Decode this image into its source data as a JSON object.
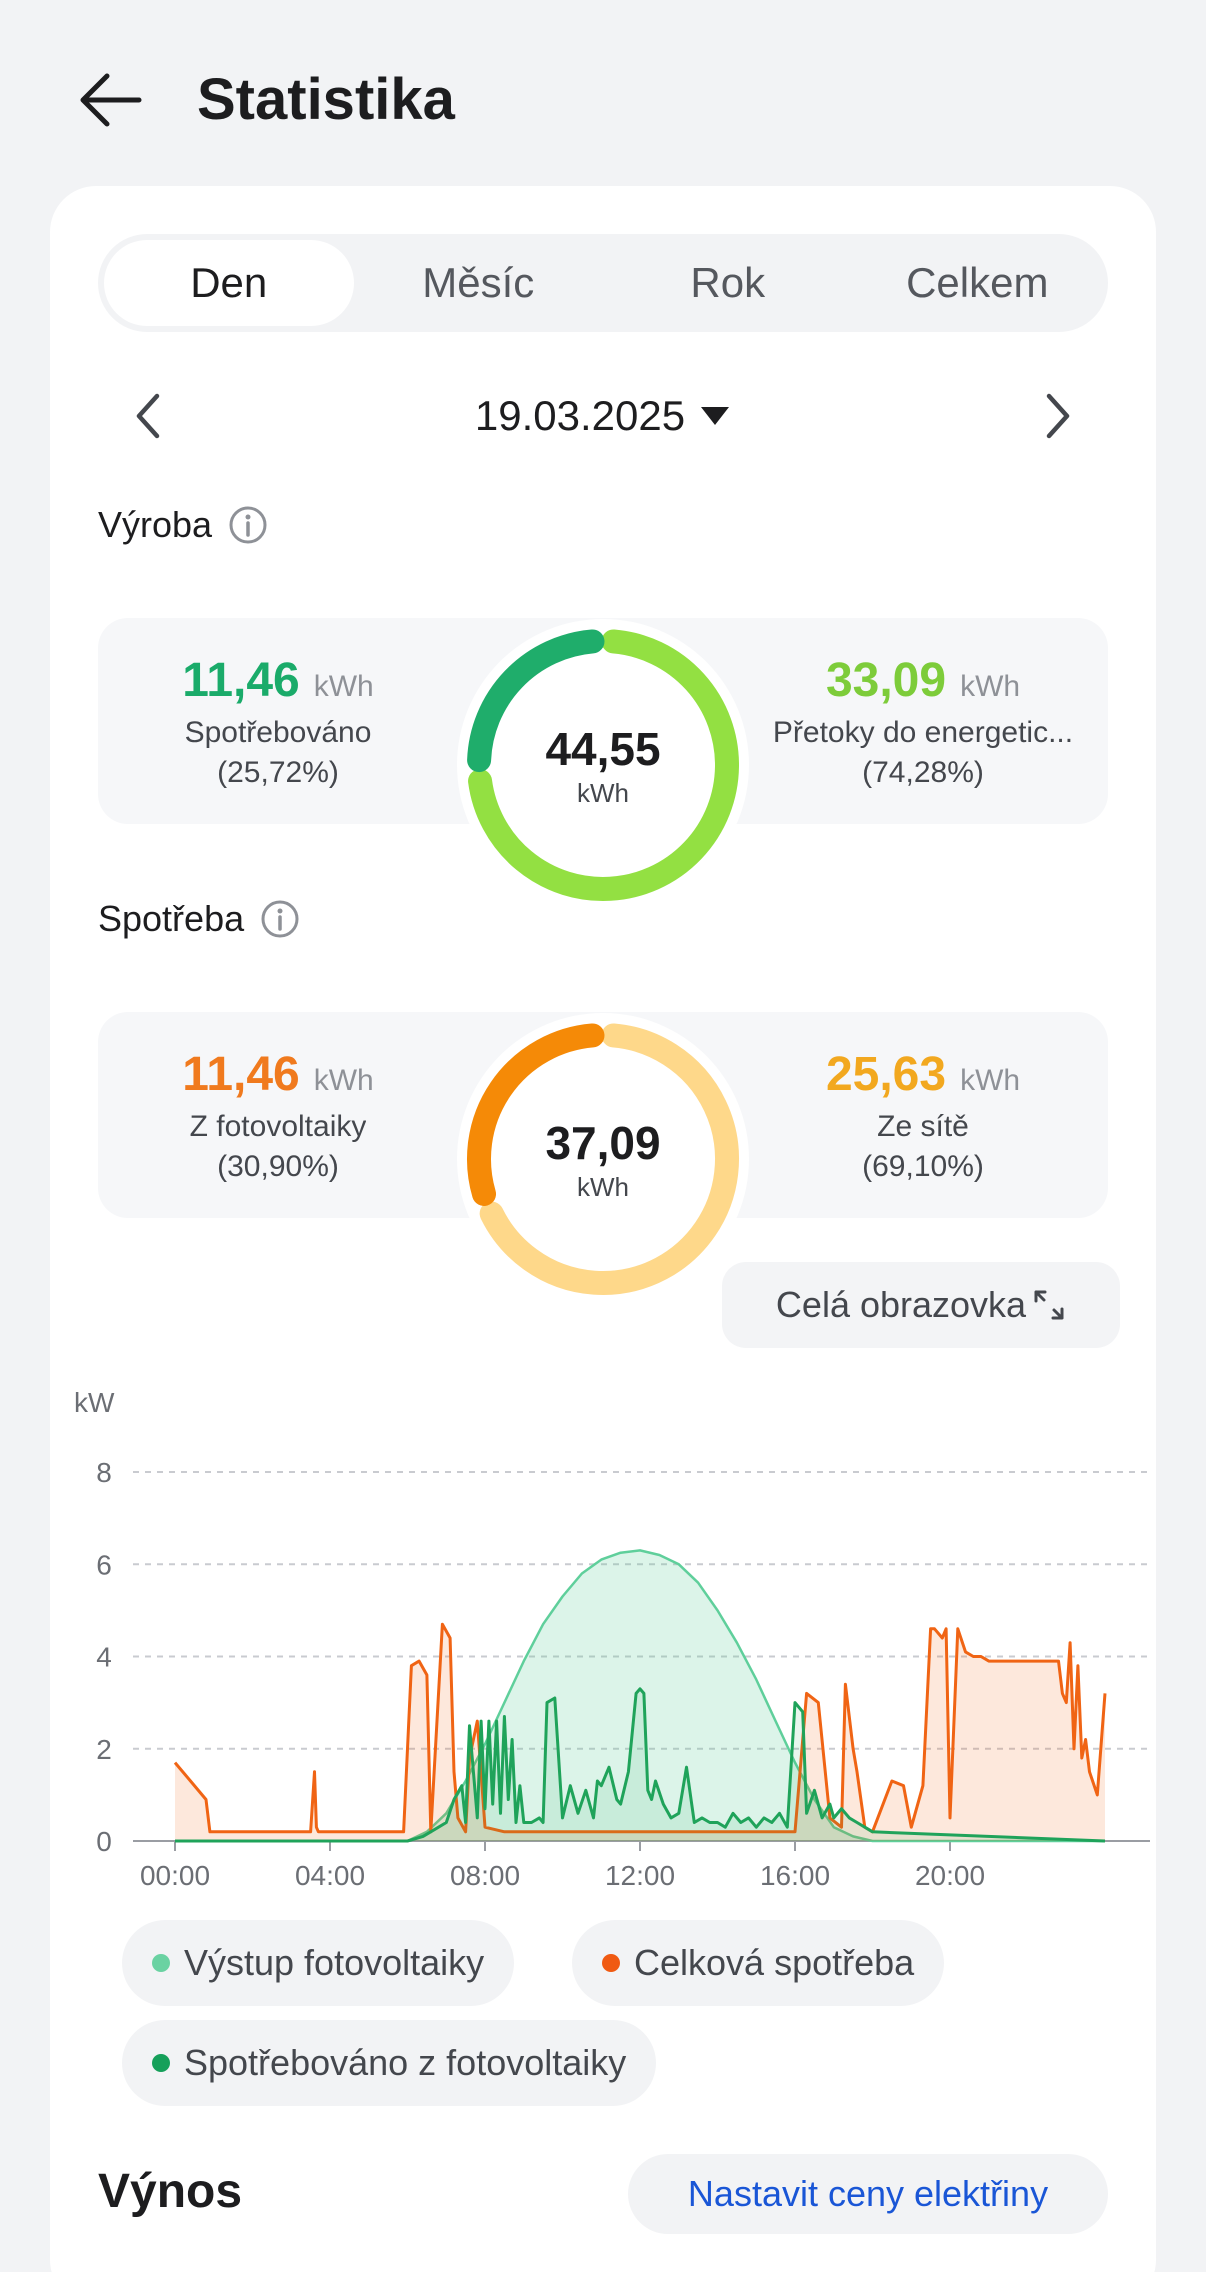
{
  "header": {
    "title": "Statistika"
  },
  "tabs": [
    {
      "label": "Den",
      "active": true
    },
    {
      "label": "Měsíc",
      "active": false
    },
    {
      "label": "Rok",
      "active": false
    },
    {
      "label": "Celkem",
      "active": false
    }
  ],
  "date": {
    "value": "19.03.2025"
  },
  "production": {
    "label": "Výroba",
    "total": "44,55",
    "unit": "kWh",
    "left": {
      "value": "11,46",
      "unit": "kWh",
      "label": "Spotřebováno",
      "pct": "(25,72%)",
      "fraction": 0.2572,
      "color": "#1aab6a"
    },
    "right": {
      "value": "33,09",
      "unit": "kWh",
      "label": "Přetoky do energetic...",
      "pct": "(74,28%)",
      "fraction": 0.7428,
      "color": "#7dcc3a"
    },
    "ring_colors": {
      "left": "#1fad6b",
      "right": "#93e042"
    }
  },
  "consumption": {
    "label": "Spotřeba",
    "total": "37,09",
    "unit": "kWh",
    "left": {
      "value": "11,46",
      "unit": "kWh",
      "label": "Z fotovoltaiky",
      "pct": "(30,90%)",
      "fraction": 0.309,
      "color": "#f07a1e"
    },
    "right": {
      "value": "25,63",
      "unit": "kWh",
      "label": "Ze sítě",
      "pct": "(69,10%)",
      "fraction": 0.691,
      "color": "#f2a81f"
    },
    "ring_colors": {
      "left": "#f58a07",
      "right": "#fed88a"
    }
  },
  "fullscreen": {
    "label": "Celá obrazovka"
  },
  "chart_data": {
    "type": "line",
    "ylabel": "kW",
    "ylim": [
      0,
      8
    ],
    "yticks": [
      "0",
      "2",
      "4",
      "6",
      "8"
    ],
    "xlim": [
      0,
      24
    ],
    "xticks": [
      "00:00",
      "04:00",
      "08:00",
      "12:00",
      "16:00",
      "20:00"
    ],
    "grid": true,
    "series": [
      {
        "name": "Výstup fotovoltaiky",
        "color": "#5fcf9b",
        "x": [
          0,
          6.0,
          6.5,
          7.0,
          7.5,
          8.0,
          8.5,
          9.0,
          9.5,
          10.0,
          10.5,
          11.0,
          11.5,
          12.0,
          12.5,
          13.0,
          13.5,
          14.0,
          14.5,
          15.0,
          15.5,
          16.0,
          16.5,
          17.0,
          17.5,
          18.0,
          24
        ],
        "y": [
          0,
          0,
          0.2,
          0.6,
          1.3,
          2.1,
          3.0,
          3.9,
          4.7,
          5.3,
          5.8,
          6.1,
          6.25,
          6.3,
          6.2,
          6.0,
          5.6,
          5.0,
          4.3,
          3.5,
          2.6,
          1.7,
          0.9,
          0.3,
          0.1,
          0,
          0
        ]
      },
      {
        "name": "Celková spotřeba",
        "color": "#f06414",
        "x": [
          0,
          0.4,
          0.8,
          0.9,
          1.5,
          3.5,
          3.6,
          3.65,
          3.7,
          4.0,
          5.9,
          6.1,
          6.3,
          6.5,
          6.6,
          6.9,
          7.1,
          7.2,
          7.3,
          7.5,
          7.6,
          7.8,
          8.0,
          8.5,
          9.0,
          9.5,
          10.0,
          11.0,
          12.0,
          13.0,
          14.0,
          15.0,
          15.5,
          16.0,
          16.3,
          16.6,
          16.9,
          17.2,
          17.3,
          17.5,
          17.6,
          17.8,
          18.0,
          18.5,
          18.8,
          19.0,
          19.3,
          19.5,
          19.6,
          19.8,
          19.9,
          20.0,
          20.2,
          20.4,
          20.6,
          20.8,
          21.0,
          21.5,
          22.0,
          22.5,
          22.8,
          22.9,
          23.0,
          23.1,
          23.2,
          23.3,
          23.4,
          23.5,
          23.6,
          23.8,
          24.0
        ],
        "y": [
          1.7,
          1.3,
          0.9,
          0.2,
          0.2,
          0.2,
          1.5,
          0.3,
          0.2,
          0.2,
          0.2,
          3.8,
          3.9,
          3.6,
          0.2,
          4.7,
          4.4,
          1.5,
          0.5,
          0.2,
          1.8,
          2.6,
          0.3,
          0.2,
          0.2,
          0.2,
          0.2,
          0.2,
          0.2,
          0.2,
          0.2,
          0.2,
          0.2,
          0.2,
          3.2,
          3.0,
          0.5,
          0.3,
          3.4,
          2.0,
          1.5,
          0.3,
          0.2,
          1.3,
          1.2,
          0.3,
          1.2,
          4.6,
          4.6,
          4.4,
          4.6,
          0.5,
          4.6,
          4.1,
          4.0,
          4.0,
          3.9,
          3.9,
          3.9,
          3.9,
          3.9,
          3.2,
          3.0,
          4.3,
          2.0,
          3.8,
          1.8,
          2.2,
          1.5,
          1.0,
          3.2
        ]
      },
      {
        "name": "Spotřebováno z fotovoltaiky",
        "color": "#1fa35a",
        "x": [
          0,
          6.0,
          6.4,
          6.8,
          7.0,
          7.2,
          7.4,
          7.5,
          7.6,
          7.8,
          7.9,
          8.0,
          8.1,
          8.2,
          8.3,
          8.4,
          8.5,
          8.6,
          8.7,
          8.8,
          8.9,
          9.0,
          9.2,
          9.4,
          9.5,
          9.6,
          9.8,
          10.0,
          10.2,
          10.4,
          10.6,
          10.8,
          10.9,
          11.0,
          11.2,
          11.4,
          11.5,
          11.7,
          11.9,
          12.0,
          12.1,
          12.2,
          12.3,
          12.4,
          12.6,
          12.8,
          13.0,
          13.2,
          13.4,
          13.6,
          13.8,
          14.0,
          14.2,
          14.4,
          14.6,
          14.8,
          15.0,
          15.2,
          15.4,
          15.6,
          15.8,
          16.0,
          16.2,
          16.3,
          16.5,
          16.7,
          16.9,
          17.0,
          17.2,
          17.4,
          17.6,
          17.8,
          18.0,
          24
        ],
        "y": [
          0,
          0,
          0.1,
          0.3,
          0.4,
          0.9,
          1.2,
          0.4,
          2.5,
          0.5,
          2.6,
          0.7,
          2.6,
          0.8,
          2.6,
          0.6,
          2.7,
          0.9,
          2.2,
          0.4,
          1.2,
          0.4,
          0.4,
          0.5,
          0.4,
          3.0,
          3.1,
          0.5,
          1.2,
          0.6,
          1.1,
          0.5,
          1.3,
          1.2,
          1.6,
          0.9,
          0.8,
          1.5,
          3.2,
          3.3,
          3.2,
          1.1,
          0.9,
          1.3,
          0.8,
          0.5,
          0.6,
          1.6,
          0.4,
          0.5,
          0.4,
          0.4,
          0.3,
          0.6,
          0.4,
          0.5,
          0.3,
          0.5,
          0.4,
          0.6,
          0.3,
          3.0,
          2.8,
          0.6,
          1.1,
          0.5,
          0.8,
          0.5,
          0.7,
          0.5,
          0.4,
          0.3,
          0.2,
          0
        ]
      }
    ]
  },
  "legend": [
    {
      "label": "Výstup fotovoltaiky",
      "color": "#6ad2a2"
    },
    {
      "label": "Celková spotřeba",
      "color": "#f05a12"
    },
    {
      "label": "Spotřebováno z fotovoltaiky",
      "color": "#16a05a"
    }
  ],
  "yield": {
    "title": "Výnos",
    "button": "Nastavit ceny elektřiny"
  }
}
